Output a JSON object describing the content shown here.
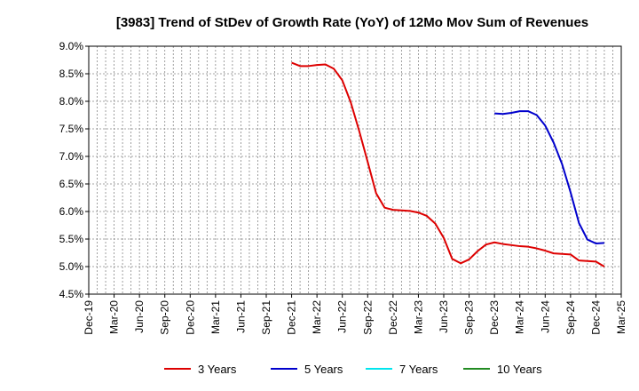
{
  "chart_data": {
    "type": "line",
    "title": "[3983]  Trend of StDev of Growth Rate (YoY) of 12Mo Mov Sum of Revenues",
    "xlabel": "",
    "ylabel": "",
    "ylim": [
      4.5,
      9.0
    ],
    "y_ticks": [
      "4.5%",
      "5.0%",
      "5.5%",
      "6.0%",
      "6.5%",
      "7.0%",
      "7.5%",
      "8.0%",
      "8.5%",
      "9.0%"
    ],
    "x_ticks": [
      "Dec-19",
      "Mar-20",
      "Jun-20",
      "Sep-20",
      "Dec-20",
      "Mar-21",
      "Jun-21",
      "Sep-21",
      "Dec-21",
      "Mar-22",
      "Jun-22",
      "Sep-22",
      "Dec-22",
      "Mar-23",
      "Jun-23",
      "Sep-23",
      "Dec-23",
      "Mar-24",
      "Jun-24",
      "Sep-24",
      "Dec-24",
      "Mar-25"
    ],
    "x_start": "Dec-19",
    "grid": true,
    "legend_position": "bottom",
    "series": [
      {
        "name": "3 Years",
        "color": "#dd0000",
        "start_month_index": 24,
        "values": [
          8.7,
          8.64,
          8.64,
          8.66,
          8.67,
          8.59,
          8.38,
          7.98,
          7.46,
          6.9,
          6.33,
          6.07,
          6.03,
          6.02,
          6.01,
          5.98,
          5.92,
          5.78,
          5.52,
          5.14,
          5.06,
          5.13,
          5.28,
          5.4,
          5.44,
          5.41,
          5.39,
          5.37,
          5.36,
          5.33,
          5.29,
          5.24,
          5.23,
          5.22,
          5.11,
          5.1,
          5.09,
          5.0
        ]
      },
      {
        "name": "5 Years",
        "color": "#0000cc",
        "start_month_index": 48,
        "values": [
          7.78,
          7.77,
          7.79,
          7.82,
          7.82,
          7.75,
          7.56,
          7.25,
          6.86,
          6.35,
          5.79,
          5.49,
          5.42,
          5.43
        ]
      },
      {
        "name": "7 Years",
        "color": "#00e5ee",
        "start_month_index": null,
        "values": []
      },
      {
        "name": "10 Years",
        "color": "#228b22",
        "start_month_index": null,
        "values": []
      }
    ]
  }
}
